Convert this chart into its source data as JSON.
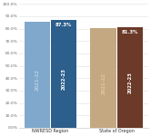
{
  "groups": [
    "NWRESD Region",
    "State of Oregon"
  ],
  "years": [
    "2021-22",
    "2022-23"
  ],
  "values": [
    [
      85.5,
      87.3
    ],
    [
      80.2,
      81.3
    ]
  ],
  "bar_colors_nwresd": [
    "#7fa8cc",
    "#2d5f8c"
  ],
  "bar_colors_oregon": [
    "#c4a882",
    "#6b3a28"
  ],
  "label_2122_color_nwresd": "#b8cfe0",
  "label_2223_color_nwresd": "#ffffff",
  "label_2122_color_oregon": "#ddc9aa",
  "label_2223_color_oregon": "#ffffff",
  "value_label_nwresd": "87.3%",
  "value_label_oregon": "81.3%",
  "ylim": [
    0,
    1.0
  ],
  "yticks": [
    0.0,
    0.1,
    0.2,
    0.3,
    0.4,
    0.5,
    0.6,
    0.7,
    0.8,
    0.9,
    1.0
  ],
  "ytick_labels": [
    "0.0%",
    "10.0%",
    "20.0%",
    "30.0%",
    "40.0%",
    "50.0%",
    "60.0%",
    "70.0%",
    "80.0%",
    "90.0%",
    "100.0%"
  ],
  "background_color": "#ffffff",
  "grid_color": "#e0e0e0"
}
